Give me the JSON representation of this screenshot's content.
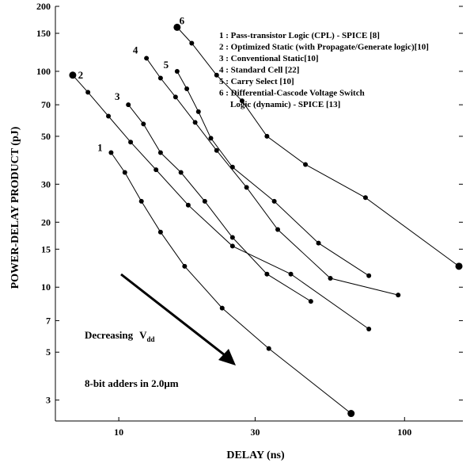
{
  "chart_data": {
    "type": "line",
    "xlabel": "DELAY (ns)",
    "ylabel": "POWER-DELAY PRODUCT (pJ)",
    "xscale": "log",
    "yscale": "log",
    "xlim": [
      6,
      160
    ],
    "ylim": [
      2.4,
      200
    ],
    "grid": false,
    "x_ticks": [
      10,
      30,
      100
    ],
    "x_tick_labels": [
      "10",
      "30",
      "100"
    ],
    "y_ticks": [
      3,
      5,
      7,
      10,
      15,
      20,
      30,
      50,
      70,
      100,
      150,
      200
    ],
    "y_tick_labels": [
      "3",
      "5",
      "7",
      "10",
      "15",
      "20",
      "30",
      "50",
      "70",
      "100",
      "150",
      "200"
    ],
    "legend": {
      "placement": "top-right",
      "entries": [
        "1 : Pass-transistor Logic (CPL) - SPICE [8]",
        "2 : Optimized Static (with Propagate/Generate logic)[10]",
        "3 : Conventional Static[10]",
        "4 : Standard Cell [22]",
        "5 : Carry Select [10]",
        "6 : Differential-Cascode Voltage Switch",
        "Logic (dynamic) - SPICE [13]"
      ]
    },
    "series": [
      {
        "name": "1",
        "x": [
          9.4,
          10.5,
          12.0,
          14.0,
          17.0,
          23.0,
          33.5,
          65.0
        ],
        "y": [
          42,
          34,
          25,
          18,
          12.5,
          8.0,
          5.2,
          2.6
        ]
      },
      {
        "name": "2",
        "x": [
          6.9,
          7.8,
          9.2,
          11.0,
          13.5,
          17.5,
          25.0,
          40.0,
          75.0
        ],
        "y": [
          96,
          80,
          62,
          47,
          35,
          24,
          15.5,
          11.5,
          6.4
        ]
      },
      {
        "name": "3",
        "x": [
          10.8,
          12.2,
          14.0,
          16.5,
          20.0,
          25.0,
          33.0,
          47.0
        ],
        "y": [
          70,
          57,
          42,
          34,
          25,
          17,
          11.5,
          8.6
        ]
      },
      {
        "name": "4",
        "x": [
          12.5,
          14.0,
          15.8,
          18.5,
          22.0,
          28.0,
          36.0,
          55.0,
          95.0
        ],
        "y": [
          115,
          93,
          76,
          58,
          43,
          29,
          18.5,
          11,
          9.2
        ]
      },
      {
        "name": "5",
        "x": [
          16.0,
          17.3,
          19.0,
          21.0,
          25.0,
          35.0,
          50.0,
          75.0
        ],
        "y": [
          100,
          83,
          65,
          49,
          36,
          25,
          16,
          11.3
        ]
      },
      {
        "name": "6",
        "x": [
          16.0,
          18.0,
          22.0,
          27.0,
          33.0,
          45.0,
          73.0,
          155.0
        ],
        "y": [
          160,
          135,
          96,
          73,
          50,
          37,
          26,
          12.5
        ]
      }
    ],
    "annotations": {
      "decreasing_prefix": "Decreasing",
      "decreasing_var": "V",
      "decreasing_sub": "dd",
      "caption_prefix": "8-bit adders in 2.0",
      "caption_unit": "μm"
    }
  }
}
